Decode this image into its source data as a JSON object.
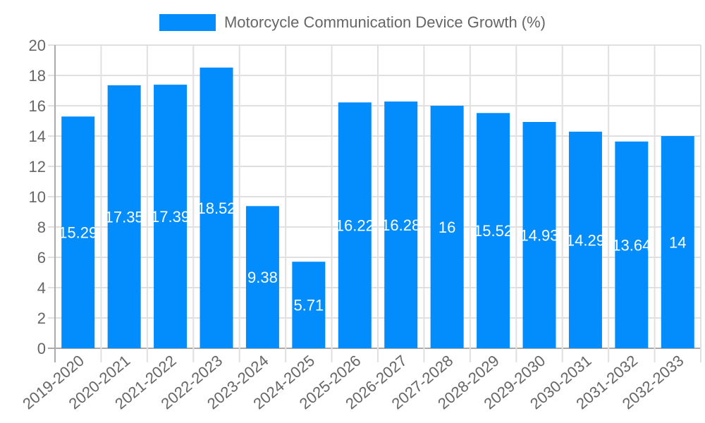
{
  "chart_data": {
    "type": "bar",
    "title": "",
    "legend": [
      {
        "label": "Motorcycle Communication Device Growth (%)",
        "color": "#038cfc"
      }
    ],
    "legend_position": "top",
    "categories": [
      "2019-2020",
      "2020-2021",
      "2021-2022",
      "2022-2023",
      "2023-2024",
      "2024-2025",
      "2025-2026",
      "2026-2027",
      "2027-2028",
      "2028-2029",
      "2029-2030",
      "2030-2031",
      "2031-2032",
      "2032-2033"
    ],
    "series": [
      {
        "name": "Motorcycle Communication Device Growth (%)",
        "values": [
          15.29,
          17.35,
          17.39,
          18.52,
          9.38,
          5.71,
          16.22,
          16.28,
          16,
          15.52,
          14.93,
          14.29,
          13.64,
          14
        ],
        "color": "#038cfc"
      }
    ],
    "data_labels": [
      "15.29",
      "17.35",
      "17.39",
      "18.52",
      "9.38",
      "5.71",
      "16.22",
      "16.28",
      "16",
      "15.52",
      "14.93",
      "14.29",
      "13.64",
      "14"
    ],
    "xlabel": "",
    "ylabel": "",
    "ylim": [
      0,
      20
    ],
    "yticks": [
      0,
      2,
      4,
      6,
      8,
      10,
      12,
      14,
      16,
      18,
      20
    ],
    "grid": true,
    "x_tick_rotation": -40
  },
  "legend": {
    "label": "Motorcycle Communication Device Growth (%)"
  }
}
